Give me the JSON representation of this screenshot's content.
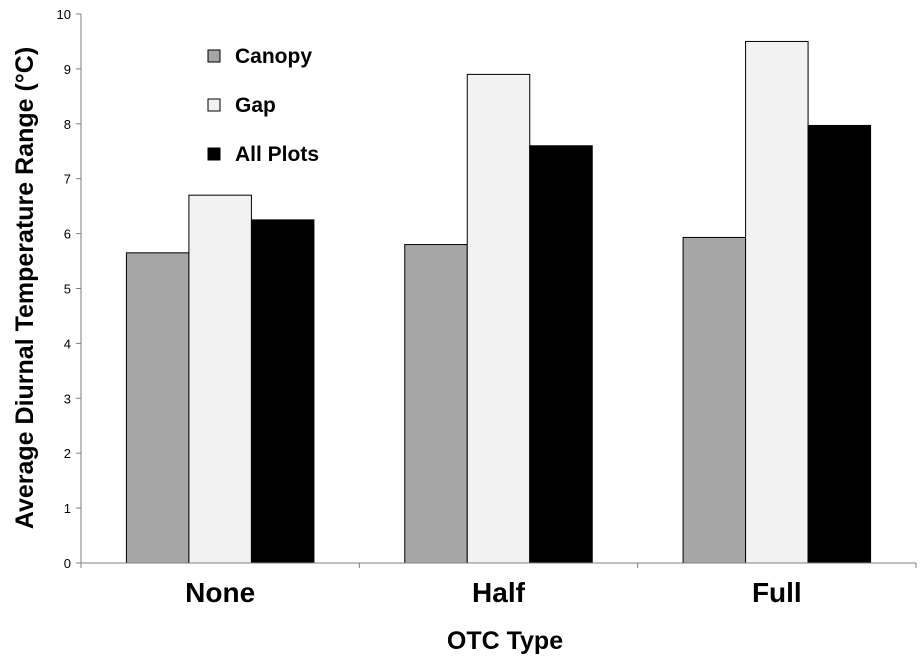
{
  "chart_data": {
    "type": "bar",
    "categories": [
      "None",
      "Half",
      "Full"
    ],
    "series": [
      {
        "name": "Canopy",
        "values": [
          5.65,
          5.8,
          5.93
        ],
        "color": "#a6a6a6"
      },
      {
        "name": "Gap",
        "values": [
          6.7,
          8.9,
          9.5
        ],
        "color": "#f2f2f2"
      },
      {
        "name": "All Plots",
        "values": [
          6.25,
          7.6,
          7.97
        ],
        "color": "#000000"
      }
    ],
    "xlabel": "OTC Type",
    "ylabel": "Average Diurnal Temperature Range (°C)",
    "ylim": [
      0,
      10
    ],
    "yticks": [
      "0",
      "1",
      "2",
      "3",
      "4",
      "5",
      "6",
      "7",
      "8",
      "9",
      "10"
    ],
    "grid": false,
    "legend_position": "top-left"
  }
}
